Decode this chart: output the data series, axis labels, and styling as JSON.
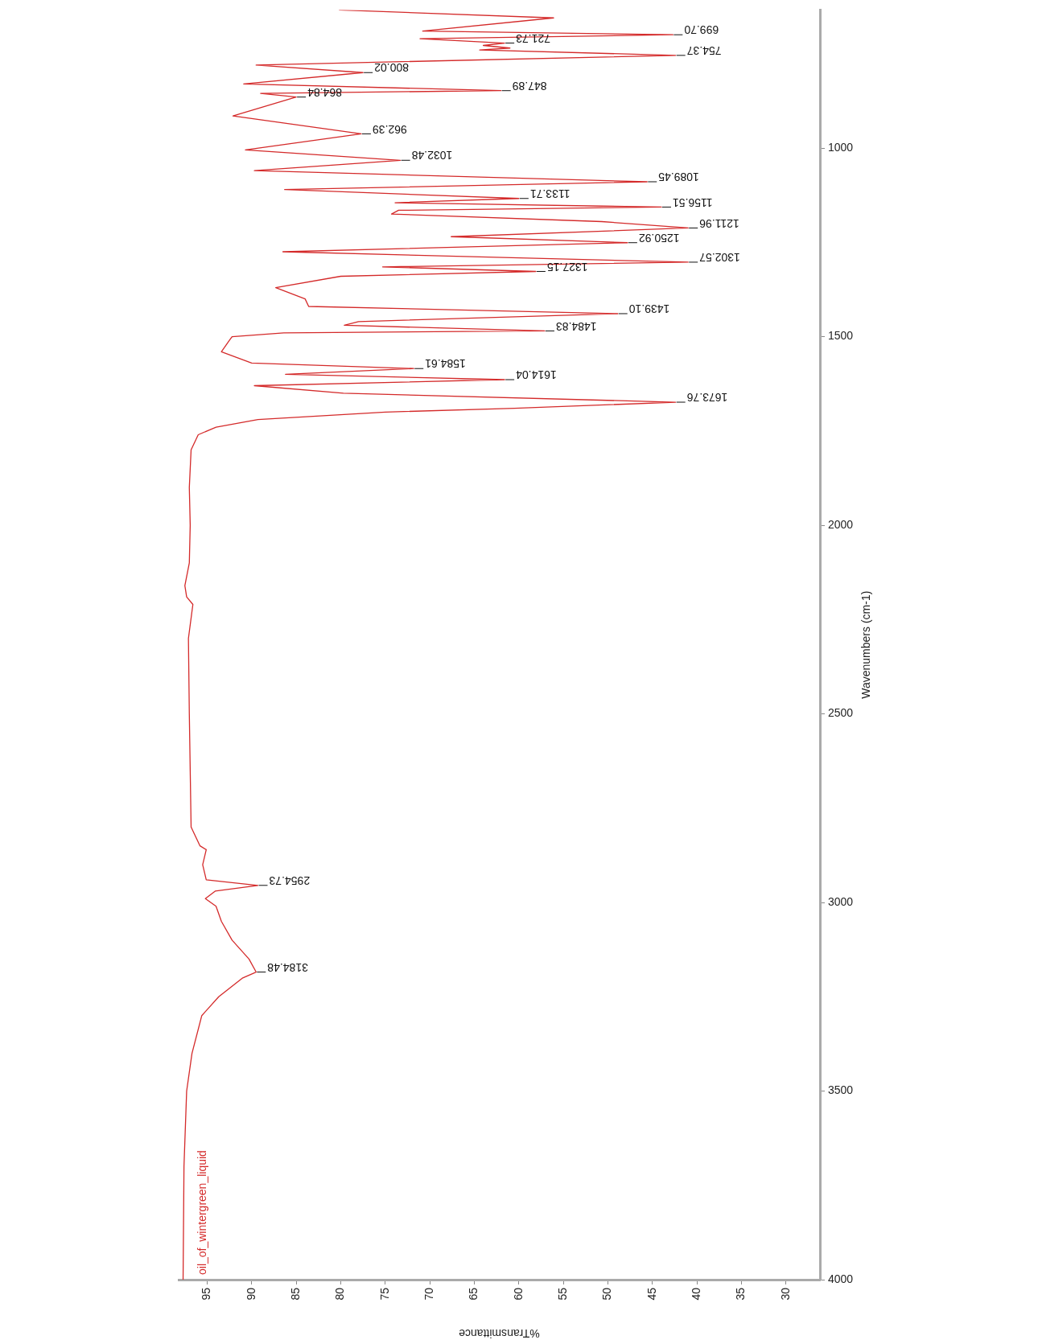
{
  "chart_data": {
    "type": "line",
    "xlabel": "%Transmittance",
    "ylabel": "Wavenumbers (cm-1)",
    "xlim": [
      98.2,
      26.2
    ],
    "xticks": [
      95,
      90,
      85,
      80,
      75,
      70,
      65,
      60,
      55,
      50,
      45,
      40,
      35,
      30
    ],
    "ylim": [
      4000,
      634
    ],
    "yticks": [
      4000,
      3500,
      3000,
      2500,
      2000,
      1500,
      1000
    ],
    "series": [
      {
        "name": "oil_of_wintergreen_liquid",
        "color": "#d42a2a",
        "x": [
          97.7,
          97.6,
          97.3,
          96.7,
          95.6,
          93.7,
          91,
          89.5,
          90.3,
          92.2,
          93.4,
          94,
          95.2,
          94.1,
          89.3,
          95.1,
          95.5,
          95.1,
          95.8,
          96.8,
          97,
          97.1,
          96.6,
          97.3,
          97.5,
          97,
          96.9,
          97,
          96.8,
          96,
          94,
          89.3,
          75,
          60.5,
          42.4,
          79.7,
          89.7,
          61.6,
          86.2,
          71.8,
          90,
          93.4,
          92.5,
          92.2,
          86.4,
          57.1,
          79.6,
          78,
          48.9,
          83.6,
          84,
          87.3,
          80,
          58.1,
          75.3,
          41,
          86.5,
          47.8,
          67.6,
          41,
          50.7,
          74.3,
          73.5,
          44,
          73.9,
          60,
          86.3,
          45.6,
          89.7,
          73.3,
          90.7,
          77.7,
          92.1,
          85,
          89,
          62,
          90.9,
          77.5,
          89.5,
          42.4,
          64.4,
          61,
          64,
          61.6,
          71.1,
          42.7,
          70.8,
          56.1,
          80.2
        ],
        "values": [
          4000,
          3700,
          3500,
          3400,
          3300,
          3250,
          3200,
          3184.48,
          3150,
          3100,
          3050,
          3010,
          2990,
          2970,
          2954.73,
          2940,
          2900,
          2860,
          2850,
          2800,
          2500,
          2300,
          2210,
          2190,
          2160,
          2100,
          2000,
          1900,
          1800,
          1760,
          1740,
          1720,
          1700,
          1690,
          1673.76,
          1650,
          1630,
          1614.04,
          1600,
          1584.61,
          1570,
          1540,
          1510,
          1500,
          1490,
          1484.83,
          1470,
          1460,
          1439.1,
          1420,
          1400,
          1370,
          1340,
          1327.15,
          1315,
          1302.57,
          1275,
          1250.92,
          1235,
          1211.96,
          1195,
          1175,
          1165,
          1156.51,
          1145,
          1133.71,
          1110,
          1089.45,
          1060,
          1032.48,
          1005,
          962.39,
          915,
          864.84,
          855,
          847.89,
          830,
          800.02,
          780,
          754.37,
          740,
          735,
          728,
          721.73,
          710,
          699.7,
          690,
          655,
          634
        ]
      }
    ],
    "annotations": [
      {
        "text": "3184.48",
        "x": 89.5,
        "y": 3184.48
      },
      {
        "text": "2954.73",
        "x": 89.3,
        "y": 2954.73
      },
      {
        "text": "1673.76",
        "x": 42.4,
        "y": 1673.76
      },
      {
        "text": "1614.04",
        "x": 61.6,
        "y": 1614.04
      },
      {
        "text": "1584.61",
        "x": 71.8,
        "y": 1584.61
      },
      {
        "text": "1484.83",
        "x": 57.1,
        "y": 1484.83
      },
      {
        "text": "1439.10",
        "x": 48.9,
        "y": 1439.1
      },
      {
        "text": "1327.15",
        "x": 58.1,
        "y": 1327.15
      },
      {
        "text": "1302.57",
        "x": 41,
        "y": 1302.57
      },
      {
        "text": "1250.92",
        "x": 47.8,
        "y": 1250.92
      },
      {
        "text": "1211.96",
        "x": 41,
        "y": 1211.96
      },
      {
        "text": "1156.51",
        "x": 44,
        "y": 1156.51
      },
      {
        "text": "1133.71",
        "x": 60,
        "y": 1133.71
      },
      {
        "text": "1089.45",
        "x": 45.6,
        "y": 1089.45
      },
      {
        "text": "1032.48",
        "x": 73.3,
        "y": 1032.48
      },
      {
        "text": "962.39",
        "x": 77.7,
        "y": 962.39
      },
      {
        "text": "864.84",
        "x": 85,
        "y": 864.84
      },
      {
        "text": "847.89",
        "x": 62,
        "y": 847.89
      },
      {
        "text": "800.02",
        "x": 77.5,
        "y": 800.02
      },
      {
        "text": "754.37",
        "x": 42.4,
        "y": 754.37
      },
      {
        "text": "721.73",
        "x": 61.6,
        "y": 721.73
      },
      {
        "text": "699.70",
        "x": 42.7,
        "y": 699.7
      }
    ]
  }
}
